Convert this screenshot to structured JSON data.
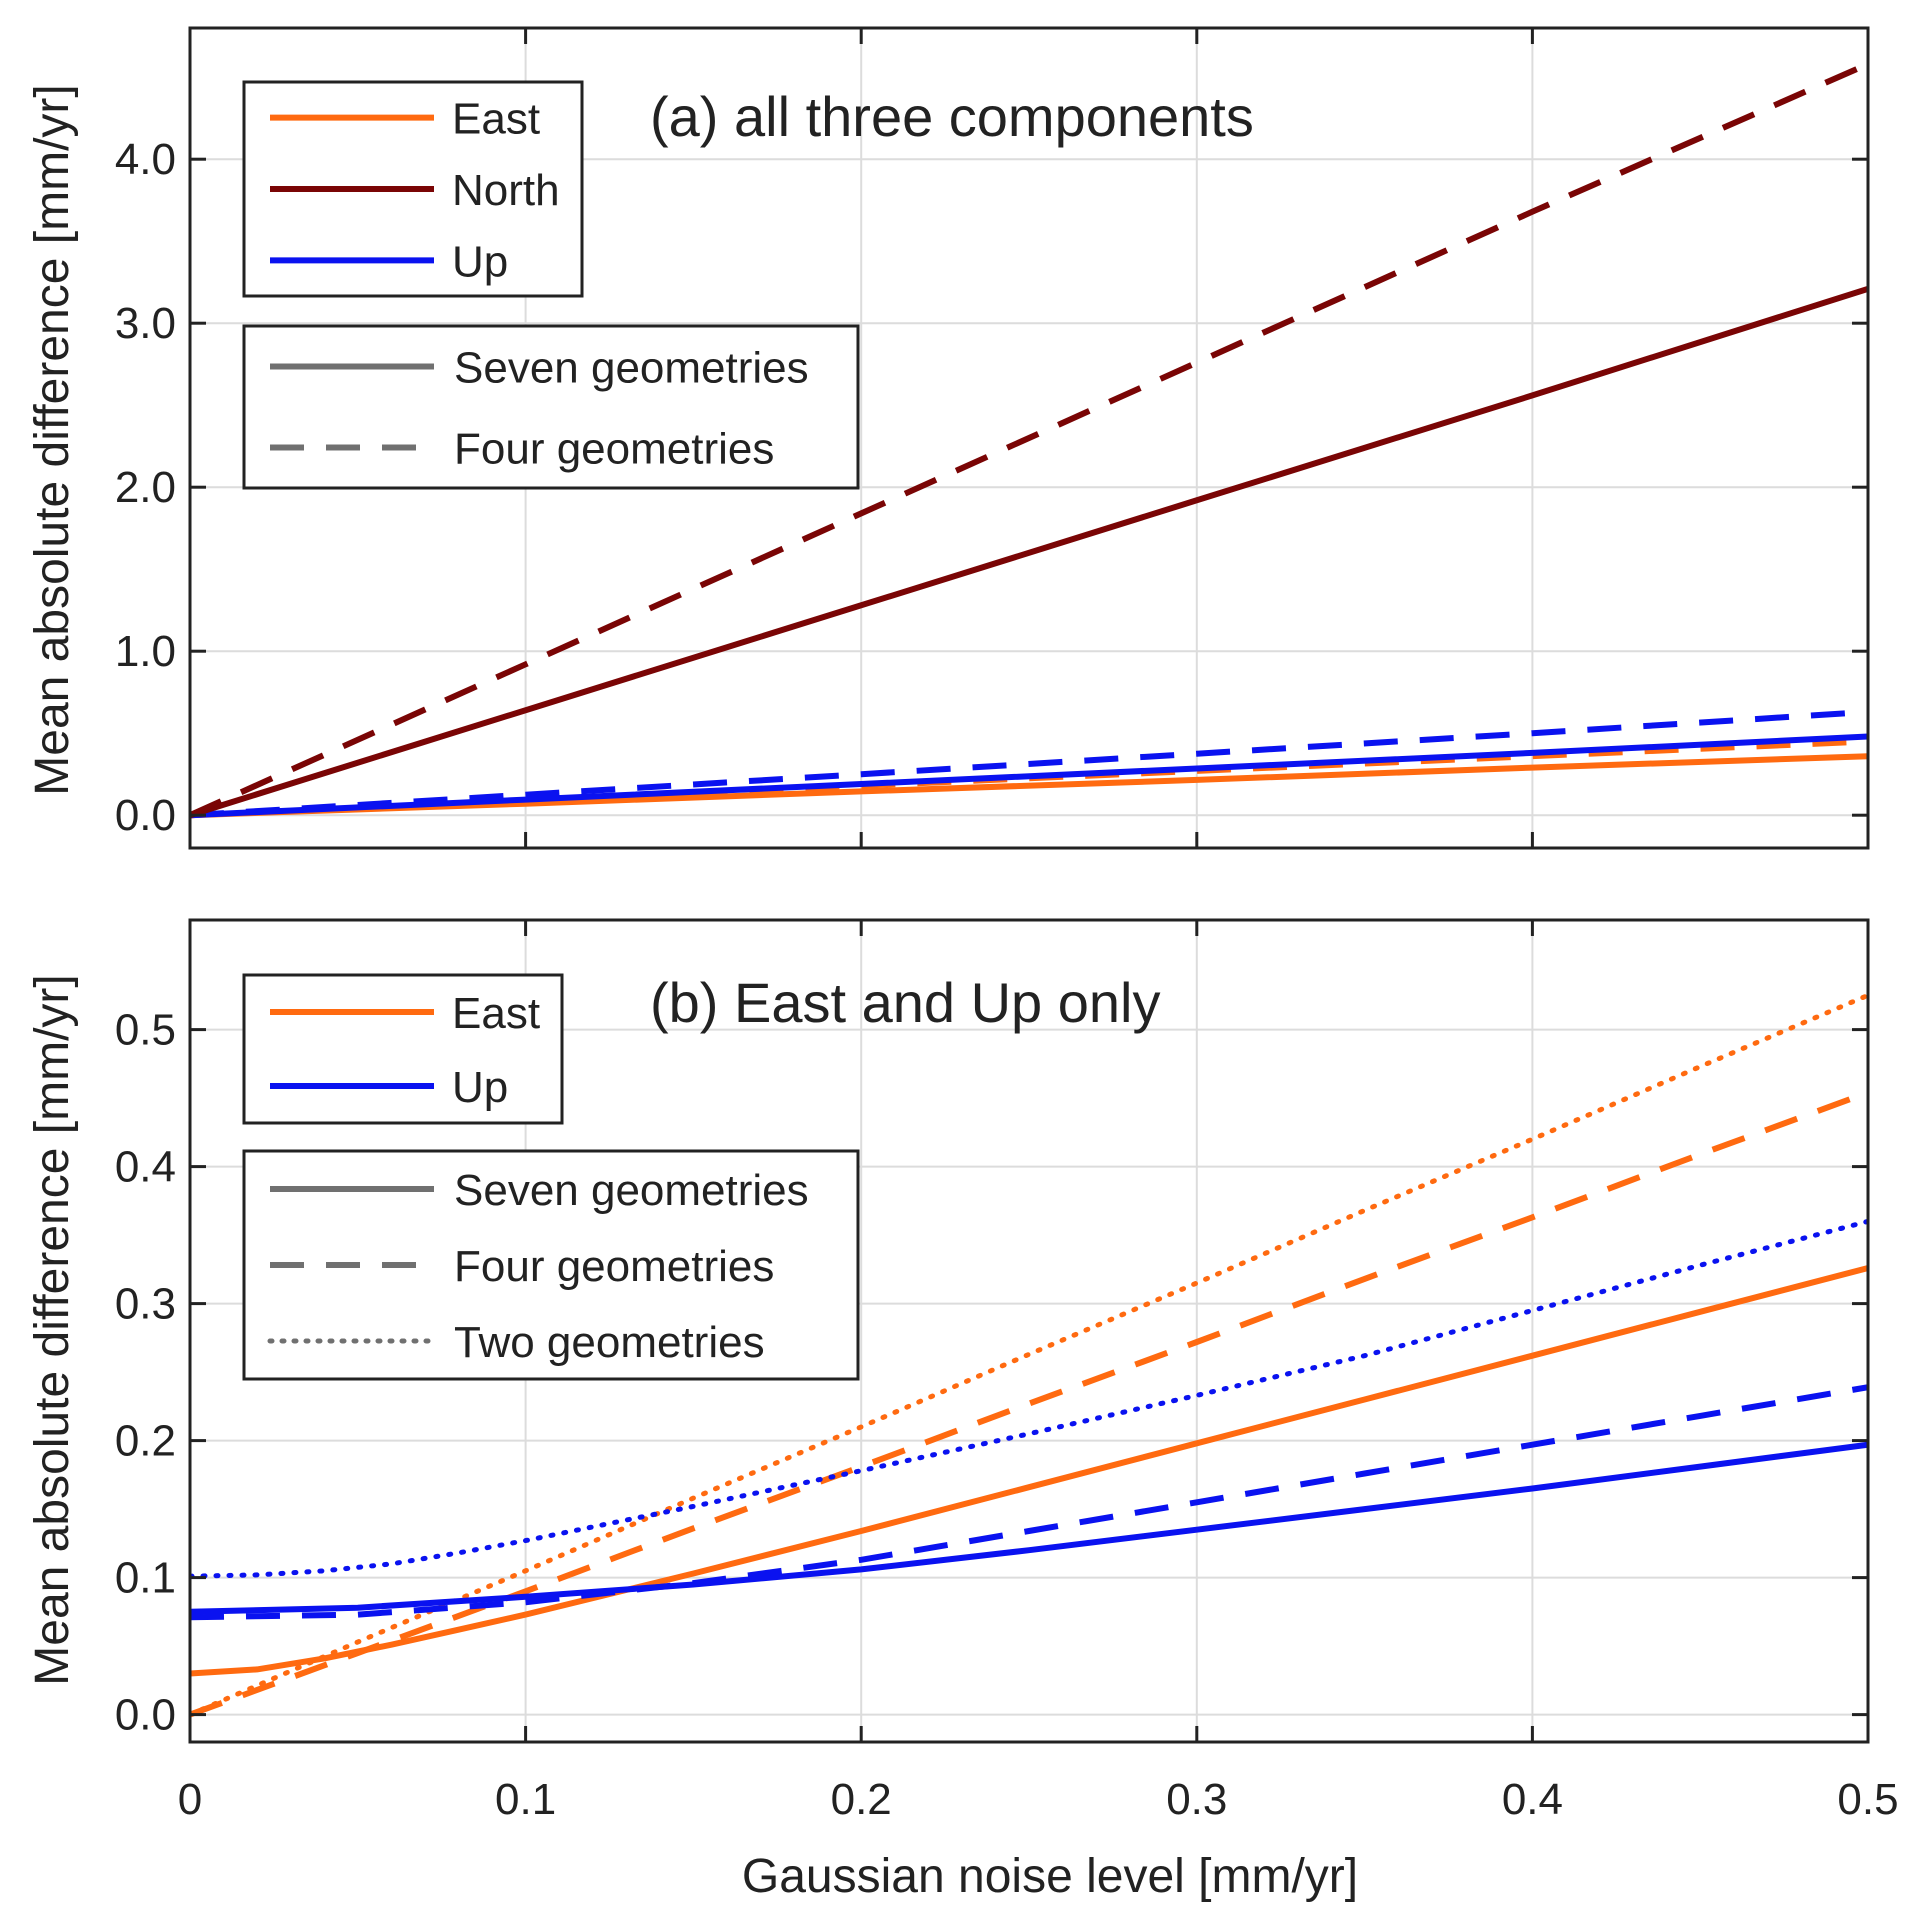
{
  "chart_data": [
    {
      "type": "line",
      "title": "(a) all three components",
      "xlabel": "",
      "ylabel": "Mean absolute difference [mm/yr]",
      "xlim": [
        0,
        0.5
      ],
      "ylim": [
        -0.2,
        4.8
      ],
      "grid": true,
      "x_ticks": [
        {
          "value": 0,
          "label": "0"
        },
        {
          "value": 0.1,
          "label": "0.1"
        },
        {
          "value": 0.2,
          "label": "0.2"
        },
        {
          "value": 0.3,
          "label": "0.3"
        },
        {
          "value": 0.4,
          "label": "0.4"
        },
        {
          "value": 0.5,
          "label": "0.5"
        }
      ],
      "show_x_tick_labels": false,
      "y_ticks": [
        {
          "value": 0,
          "label": "0.0"
        },
        {
          "value": 1,
          "label": "1.0"
        },
        {
          "value": 2,
          "label": "2.0"
        },
        {
          "value": 3,
          "label": "3.0"
        },
        {
          "value": 4,
          "label": "4.0"
        }
      ],
      "legend_components": {
        "position": "top-left",
        "entries": [
          {
            "label": "East",
            "color": "#ff6a10"
          },
          {
            "label": "North",
            "color": "#7a0505"
          },
          {
            "label": "Up",
            "color": "#0a12f0"
          }
        ]
      },
      "legend_styles": {
        "position": "upper-left",
        "entries": [
          {
            "label": "Seven geometries",
            "style": "solid"
          },
          {
            "label": "Four geometries",
            "style": "dashed"
          }
        ]
      },
      "series": [
        {
          "name": "East — Seven geometries",
          "component": "East",
          "style": "solid",
          "color": "#ff6a10",
          "x": [
            0,
            0.1,
            0.2,
            0.3,
            0.4,
            0.5
          ],
          "y": [
            0,
            0.07,
            0.145,
            0.215,
            0.29,
            0.36
          ]
        },
        {
          "name": "East — Four geometries",
          "component": "East",
          "style": "dashed",
          "color": "#ff6a10",
          "x": [
            0,
            0.1,
            0.2,
            0.3,
            0.4,
            0.5
          ],
          "y": [
            0,
            0.09,
            0.18,
            0.27,
            0.36,
            0.45
          ]
        },
        {
          "name": "Up — Seven geometries",
          "component": "Up",
          "style": "solid",
          "color": "#0a12f0",
          "x": [
            0,
            0.1,
            0.2,
            0.3,
            0.4,
            0.5
          ],
          "y": [
            0,
            0.095,
            0.19,
            0.285,
            0.38,
            0.48
          ]
        },
        {
          "name": "Up — Four geometries",
          "component": "Up",
          "style": "dashed",
          "color": "#0a12f0",
          "x": [
            0,
            0.1,
            0.2,
            0.3,
            0.4,
            0.5
          ],
          "y": [
            0,
            0.125,
            0.25,
            0.375,
            0.5,
            0.63
          ]
        },
        {
          "name": "North — Seven geometries",
          "component": "North",
          "style": "solid",
          "color": "#7a0505",
          "x": [
            0,
            0.1,
            0.2,
            0.3,
            0.4,
            0.5
          ],
          "y": [
            0,
            0.64,
            1.28,
            1.92,
            2.56,
            3.21
          ]
        },
        {
          "name": "North — Four geometries",
          "component": "North",
          "style": "dashed",
          "color": "#7a0505",
          "x": [
            0,
            0.1,
            0.2,
            0.3,
            0.4,
            0.5
          ],
          "y": [
            0,
            0.92,
            1.84,
            2.76,
            3.68,
            4.58
          ]
        }
      ]
    },
    {
      "type": "line",
      "title": "(b) East and Up only",
      "xlabel": "Gaussian noise level [mm/yr]",
      "ylabel": "Mean absolute difference [mm/yr]",
      "xlim": [
        0,
        0.5
      ],
      "ylim": [
        -0.02,
        0.58
      ],
      "grid": true,
      "x_ticks": [
        {
          "value": 0,
          "label": "0"
        },
        {
          "value": 0.1,
          "label": "0.1"
        },
        {
          "value": 0.2,
          "label": "0.2"
        },
        {
          "value": 0.3,
          "label": "0.3"
        },
        {
          "value": 0.4,
          "label": "0.4"
        },
        {
          "value": 0.5,
          "label": "0.5"
        }
      ],
      "show_x_tick_labels": true,
      "y_ticks": [
        {
          "value": 0,
          "label": "0.0"
        },
        {
          "value": 0.1,
          "label": "0.1"
        },
        {
          "value": 0.2,
          "label": "0.2"
        },
        {
          "value": 0.3,
          "label": "0.3"
        },
        {
          "value": 0.4,
          "label": "0.4"
        },
        {
          "value": 0.5,
          "label": "0.5"
        }
      ],
      "legend_components": {
        "position": "top-left",
        "entries": [
          {
            "label": "East",
            "color": "#ff6a10"
          },
          {
            "label": "Up",
            "color": "#0a12f0"
          }
        ]
      },
      "legend_styles": {
        "position": "upper-left",
        "entries": [
          {
            "label": "Seven geometries",
            "style": "solid"
          },
          {
            "label": "Four geometries",
            "style": "dashed"
          },
          {
            "label": "Two geometries",
            "style": "dotted"
          }
        ]
      },
      "series": [
        {
          "name": "East — Seven geometries",
          "component": "East",
          "style": "solid",
          "color": "#ff6a10",
          "x": [
            0,
            0.02,
            0.04,
            0.06,
            0.08,
            0.1,
            0.15,
            0.2,
            0.25,
            0.3,
            0.35,
            0.4,
            0.45,
            0.5
          ],
          "y": [
            0.03,
            0.033,
            0.041,
            0.051,
            0.062,
            0.073,
            0.103,
            0.134,
            0.166,
            0.198,
            0.23,
            0.262,
            0.294,
            0.326
          ]
        },
        {
          "name": "East — Four geometries",
          "component": "East",
          "style": "dashed",
          "color": "#ff6a10",
          "x": [
            0,
            0.05,
            0.1,
            0.15,
            0.2,
            0.25,
            0.3,
            0.35,
            0.4,
            0.45,
            0.5
          ],
          "y": [
            0.0,
            0.045,
            0.09,
            0.136,
            0.181,
            0.227,
            0.272,
            0.318,
            0.363,
            0.409,
            0.454
          ]
        },
        {
          "name": "East — Two geometries",
          "component": "East",
          "style": "dotted",
          "color": "#ff6a10",
          "x": [
            0,
            0.05,
            0.1,
            0.15,
            0.2,
            0.25,
            0.3,
            0.35,
            0.4,
            0.45,
            0.5
          ],
          "y": [
            0.0,
            0.053,
            0.105,
            0.158,
            0.21,
            0.263,
            0.315,
            0.368,
            0.42,
            0.473,
            0.525
          ]
        },
        {
          "name": "Up — Seven geometries",
          "component": "Up",
          "style": "solid",
          "color": "#0a12f0",
          "x": [
            0,
            0.05,
            0.1,
            0.15,
            0.2,
            0.25,
            0.3,
            0.35,
            0.4,
            0.45,
            0.5
          ],
          "y": [
            0.075,
            0.078,
            0.086,
            0.095,
            0.106,
            0.12,
            0.135,
            0.15,
            0.165,
            0.181,
            0.197
          ]
        },
        {
          "name": "Up — Four geometries",
          "component": "Up",
          "style": "dashed",
          "color": "#0a12f0",
          "x": [
            0,
            0.05,
            0.1,
            0.15,
            0.2,
            0.25,
            0.3,
            0.35,
            0.4,
            0.45,
            0.5
          ],
          "y": [
            0.071,
            0.073,
            0.082,
            0.096,
            0.113,
            0.134,
            0.155,
            0.176,
            0.197,
            0.218,
            0.239
          ]
        },
        {
          "name": "Up — Two geometries",
          "component": "Up",
          "style": "dotted",
          "color": "#0a12f0",
          "x": [
            0,
            0.02,
            0.04,
            0.06,
            0.08,
            0.1,
            0.12,
            0.15,
            0.2,
            0.25,
            0.3,
            0.35,
            0.4,
            0.45,
            0.5
          ],
          "y": [
            0.101,
            0.102,
            0.105,
            0.11,
            0.118,
            0.127,
            0.137,
            0.152,
            0.178,
            0.205,
            0.233,
            0.262,
            0.295,
            0.328,
            0.36
          ]
        }
      ]
    }
  ]
}
